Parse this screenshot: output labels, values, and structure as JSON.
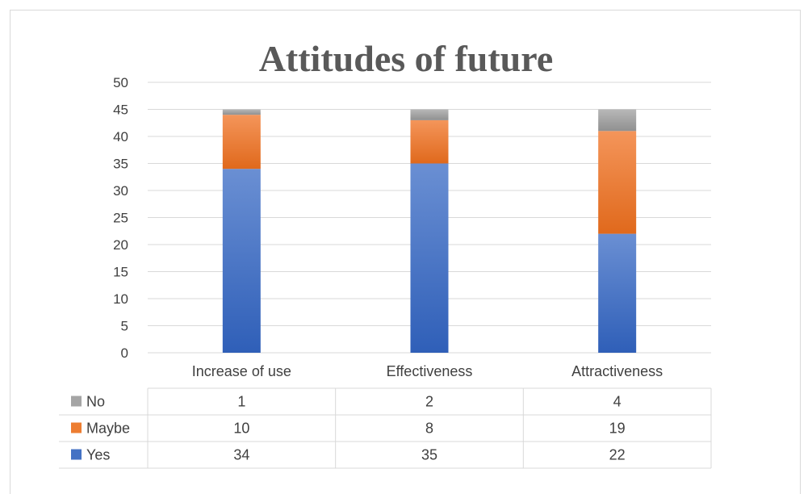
{
  "chart_data": {
    "type": "bar",
    "stacked": true,
    "title": "Attitudes of future",
    "categories": [
      "Increase of use",
      "Effectiveness",
      "Attractiveness"
    ],
    "ylim": [
      0,
      50
    ],
    "yticks": [
      0,
      5,
      10,
      15,
      20,
      25,
      30,
      35,
      40,
      45,
      50
    ],
    "grid": true,
    "legend": "data-table",
    "series": [
      {
        "name": "Yes",
        "values": [
          34,
          35,
          22
        ],
        "color": "#4472c4"
      },
      {
        "name": "Maybe",
        "values": [
          10,
          8,
          19
        ],
        "color": "#ed7d31"
      },
      {
        "name": "No",
        "values": [
          1,
          2,
          4
        ],
        "color": "#a5a5a5"
      }
    ],
    "table_row_order": [
      "No",
      "Maybe",
      "Yes"
    ]
  }
}
